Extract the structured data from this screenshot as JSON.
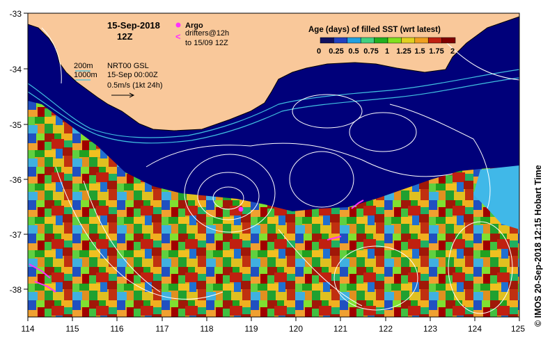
{
  "map": {
    "date_title": "15-Sep-2018",
    "time_title": "12Z",
    "legend_argo": "Argo",
    "legend_drifters_line1": "drifters@12h",
    "legend_drifters_line2": "to 15/09 12Z",
    "contour_200m": "200m",
    "contour_1000m": "1000m",
    "gsl_line1": "NRT00 GSL",
    "gsl_line2": "15-Sep 00:00Z",
    "scale_line": "0.5m/s (1kt 24h)",
    "colorbar_title": "Age (days) of filled SST (wrt latest)",
    "colorbar_ticks": [
      "0",
      "0.25",
      "0.5",
      "0.75",
      "1",
      "1.25",
      "1.5",
      "1.75",
      "2"
    ],
    "colorbar_colors": [
      "#101060",
      "#2040c0",
      "#20a0e0",
      "#40d080",
      "#20b020",
      "#80e020",
      "#e0d020",
      "#f0a020",
      "#c02010",
      "#800000"
    ],
    "x_ticks": [
      "114",
      "115",
      "116",
      "117",
      "118",
      "119",
      "120",
      "121",
      "122",
      "123",
      "124",
      "125"
    ],
    "y_ticks": [
      "-33",
      "-34",
      "-35",
      "-36",
      "-37",
      "-38"
    ],
    "credit": "© IMOS 20-Sep-2018 12:15 Hobart Time",
    "colors": {
      "land": "#f9c89a",
      "ocean_deep": "#00007a",
      "contour": "#ffffff",
      "isobath": "#40c0e0",
      "argo": "#ff30ff",
      "drifter": "#ff30ff"
    }
  }
}
